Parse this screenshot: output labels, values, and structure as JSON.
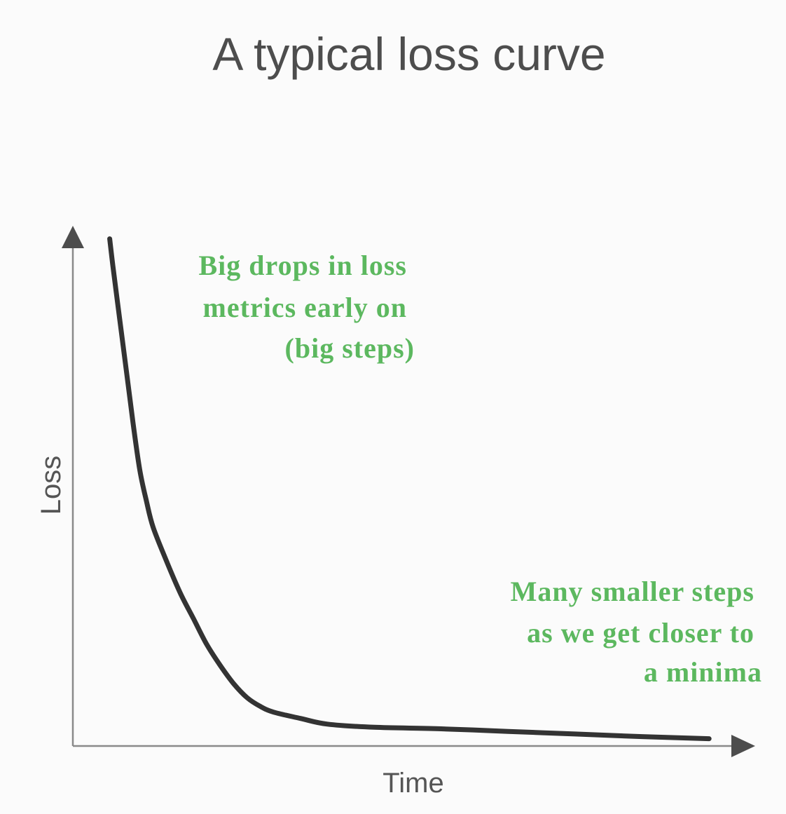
{
  "chart_data": {
    "type": "line",
    "title": "A typical loss curve",
    "xlabel": "Time",
    "ylabel": "Loss",
    "xlim": [
      0,
      100
    ],
    "ylim": [
      0,
      100
    ],
    "grid": false,
    "tick_labels": false,
    "series": [
      {
        "name": "loss",
        "color": "#333333",
        "x": [
          5.5,
          6,
          7,
          8,
          9,
          10,
          11,
          12,
          14,
          16,
          18,
          20,
          22,
          24,
          26,
          28,
          30,
          34,
          38,
          45,
          55,
          65,
          75,
          85,
          95
        ],
        "y": [
          97.5,
          92,
          82,
          72,
          62,
          53,
          47,
          42,
          35.5,
          29.5,
          24.5,
          19.5,
          15.5,
          12,
          9.3,
          7.6,
          6.5,
          5.3,
          4.2,
          3.6,
          3.3,
          2.8,
          2.3,
          1.8,
          1.4
        ]
      }
    ],
    "annotations": [
      {
        "id": "early",
        "lines": [
          "Big drops in loss",
          "metrics early on",
          "(big steps)"
        ],
        "color": "#5cb85f"
      },
      {
        "id": "late",
        "lines": [
          "Many smaller steps",
          "as we get closer to",
          "a minima"
        ],
        "color": "#5cb85f"
      }
    ]
  }
}
